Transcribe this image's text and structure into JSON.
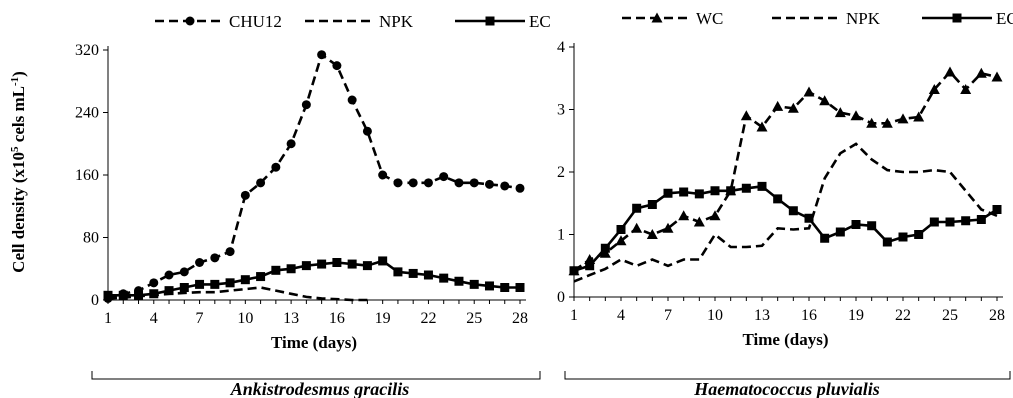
{
  "chart_data": [
    {
      "type": "line",
      "caption": "Ankistrodesmus gracilis",
      "xlabel": "Time (days)",
      "ylabel_main": "Cell density (x10",
      "ylabel_sup": "5",
      "ylabel_mid": " cels mL",
      "ylabel_sup2": "-1",
      "ylabel_end": ")",
      "xlim": [
        1,
        28
      ],
      "ylim": [
        0,
        320
      ],
      "xticks": [
        "1",
        "4",
        "7",
        "10",
        "13",
        "16",
        "19",
        "22",
        "25",
        "28"
      ],
      "yticks": [
        "0",
        "80",
        "160",
        "240",
        "320"
      ],
      "legend_position": "top",
      "series": [
        {
          "name": "CHU12",
          "style": "dashed",
          "marker": "circle",
          "x": [
            1,
            2,
            3,
            4,
            5,
            6,
            7,
            8,
            9,
            10,
            11,
            12,
            13,
            14,
            15,
            16,
            17,
            18,
            19,
            20,
            21,
            22,
            23,
            24,
            25,
            26,
            27,
            28
          ],
          "y": [
            2,
            8,
            12,
            22,
            32,
            36,
            48,
            54,
            62,
            134,
            150,
            170,
            200,
            250,
            314,
            300,
            256,
            216,
            160,
            150,
            150,
            150,
            158,
            150,
            150,
            148,
            146,
            143
          ]
        },
        {
          "name": "NPK",
          "style": "dashed",
          "marker": "none",
          "x": [
            1,
            2,
            3,
            4,
            5,
            6,
            7,
            8,
            9,
            10,
            11,
            12,
            13,
            14,
            15,
            16,
            17,
            18
          ],
          "y": [
            2,
            3,
            5,
            6,
            8,
            9,
            10,
            10,
            12,
            14,
            16,
            12,
            8,
            4,
            2,
            1,
            0,
            0
          ]
        },
        {
          "name": "EC",
          "style": "solid",
          "marker": "square",
          "x": [
            1,
            2,
            3,
            4,
            5,
            6,
            7,
            8,
            9,
            10,
            11,
            12,
            13,
            14,
            15,
            16,
            17,
            18,
            19,
            20,
            21,
            22,
            23,
            24,
            25,
            26,
            27,
            28
          ],
          "y": [
            6,
            6,
            6,
            8,
            12,
            16,
            20,
            20,
            22,
            26,
            30,
            38,
            40,
            44,
            46,
            48,
            46,
            44,
            50,
            36,
            34,
            32,
            28,
            24,
            20,
            18,
            16,
            16
          ]
        }
      ]
    },
    {
      "type": "line",
      "caption": "Haematococcus pluvialis",
      "xlabel": "Time (days)",
      "xlim": [
        1,
        28
      ],
      "ylim": [
        0,
        4
      ],
      "xticks": [
        "1",
        "4",
        "7",
        "10",
        "13",
        "16",
        "19",
        "22",
        "25",
        "28"
      ],
      "yticks": [
        "0",
        "1",
        "2",
        "3",
        "4"
      ],
      "legend_position": "top",
      "series": [
        {
          "name": "WC",
          "style": "dashed",
          "marker": "triangle",
          "x": [
            1,
            2,
            3,
            4,
            5,
            6,
            7,
            8,
            9,
            10,
            11,
            12,
            13,
            14,
            15,
            16,
            17,
            18,
            19,
            20,
            21,
            22,
            23,
            24,
            25,
            26,
            27,
            28
          ],
          "y": [
            0.42,
            0.6,
            0.7,
            0.9,
            1.1,
            1.0,
            1.1,
            1.3,
            1.2,
            1.3,
            1.7,
            2.9,
            2.72,
            3.05,
            3.02,
            3.28,
            3.14,
            2.95,
            2.9,
            2.78,
            2.78,
            2.85,
            2.88,
            3.32,
            3.6,
            3.32,
            3.58,
            3.52
          ]
        },
        {
          "name": "NPK",
          "style": "dashed",
          "marker": "none",
          "x": [
            1,
            2,
            3,
            4,
            5,
            6,
            7,
            8,
            9,
            10,
            11,
            12,
            13,
            14,
            15,
            16,
            17,
            18,
            19,
            20,
            21,
            22,
            23,
            24,
            25,
            26,
            27,
            28
          ],
          "y": [
            0.25,
            0.35,
            0.45,
            0.6,
            0.5,
            0.6,
            0.5,
            0.6,
            0.6,
            1.0,
            0.8,
            0.8,
            0.82,
            1.1,
            1.08,
            1.1,
            1.9,
            2.3,
            2.45,
            2.2,
            2.03,
            2.0,
            2.0,
            2.03,
            2.0,
            1.7,
            1.4,
            1.3
          ]
        },
        {
          "name": "EC",
          "style": "solid",
          "marker": "square",
          "x": [
            1,
            2,
            3,
            4,
            5,
            6,
            7,
            8,
            9,
            10,
            11,
            12,
            13,
            14,
            15,
            16,
            17,
            18,
            19,
            20,
            21,
            22,
            23,
            24,
            25,
            26,
            27,
            28
          ],
          "y": [
            0.42,
            0.5,
            0.78,
            1.08,
            1.42,
            1.48,
            1.66,
            1.68,
            1.65,
            1.7,
            1.7,
            1.74,
            1.77,
            1.57,
            1.38,
            1.26,
            0.94,
            1.04,
            1.16,
            1.14,
            0.88,
            0.96,
            1.0,
            1.2,
            1.2,
            1.22,
            1.24,
            1.4
          ]
        }
      ]
    }
  ]
}
